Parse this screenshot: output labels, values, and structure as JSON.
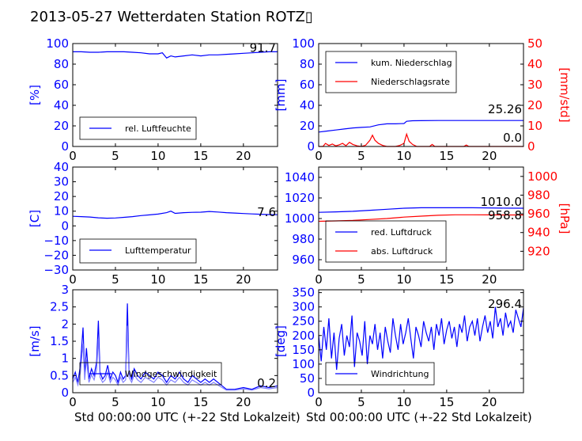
{
  "title": "2013-05-27 Wetterdaten Station ROTZ▯",
  "xlabel": "Std 00:00:00 UTC (+-22 Std Lokalzeit)",
  "colors": {
    "left_axis": "#0000ff",
    "right_axis": "#ff0000",
    "series_main": "#0000ff",
    "series_secondary": "#ff0000",
    "wind_light": "#8080ff"
  },
  "chart_data": [
    {
      "id": "humidity",
      "type": "line",
      "ylabel": "[%]",
      "xlim": [
        0,
        24
      ],
      "ylim": [
        0,
        100
      ],
      "xticks": [
        0,
        5,
        10,
        15,
        20
      ],
      "yticks": [
        0,
        20,
        40,
        60,
        80,
        100
      ],
      "legend": "bottom-left",
      "annotation": "91.7",
      "series": [
        {
          "name": "rel. Luftfeuchte",
          "color": "#0000ff",
          "x": [
            0,
            1,
            2,
            3,
            4,
            5,
            6,
            7,
            8,
            9,
            10,
            10.5,
            11,
            11.5,
            12,
            13,
            14,
            15,
            16,
            17,
            18,
            19,
            20,
            21,
            22,
            23,
            24
          ],
          "y": [
            92,
            92,
            91.5,
            91.5,
            92,
            92,
            92,
            91.5,
            91,
            90,
            90,
            91,
            86,
            88,
            87,
            88,
            89,
            88,
            89,
            89,
            89.5,
            90,
            90.5,
            91,
            91.5,
            92,
            92
          ]
        }
      ]
    },
    {
      "id": "precipitation",
      "type": "line",
      "ylabel": "[mm]",
      "ylabel_right": "[mm/std]",
      "xlim": [
        0,
        24
      ],
      "ylim": [
        0,
        100
      ],
      "ylim_right": [
        0,
        50
      ],
      "xticks": [
        0,
        5,
        10,
        15,
        20
      ],
      "yticks": [
        0,
        20,
        40,
        60,
        80,
        100
      ],
      "yticks_right": [
        0,
        10,
        20,
        30,
        40,
        50
      ],
      "legend": "top-left",
      "annotations": [
        "25.26",
        "0.0"
      ],
      "series": [
        {
          "name": "kum. Niederschlag",
          "color": "#0000ff",
          "axis": "left",
          "x": [
            0,
            1,
            2,
            3,
            4,
            5,
            6,
            7,
            8,
            9,
            10,
            10.3,
            11,
            12,
            14,
            16,
            18,
            20,
            22,
            24
          ],
          "y": [
            14,
            15,
            16,
            17,
            18,
            18.5,
            19,
            21,
            22,
            22,
            22.3,
            24.5,
            25,
            25.1,
            25.2,
            25.2,
            25.26,
            25.26,
            25.26,
            25.26
          ]
        },
        {
          "name": "Niederschlagsrate",
          "color": "#ff0000",
          "axis": "right",
          "x": [
            0,
            0.5,
            0.8,
            1.2,
            1.6,
            2.0,
            2.4,
            2.8,
            3.2,
            3.6,
            4.0,
            4.5,
            5.0,
            5.5,
            6.0,
            6.3,
            6.6,
            7.0,
            7.5,
            8.0,
            8.5,
            9.0,
            9.5,
            10.0,
            10.3,
            10.6,
            11.0,
            11.5,
            12.0,
            13.0,
            13.3,
            13.6,
            14.0,
            17.0,
            17.3,
            17.6,
            18.0,
            24.0
          ],
          "y": [
            0,
            0,
            1.5,
            0.5,
            1.2,
            0.3,
            0.8,
            1.5,
            0.4,
            2.0,
            1.0,
            0.3,
            0,
            0.6,
            3.0,
            5.5,
            3.0,
            1.5,
            0.5,
            0,
            0,
            0,
            0.5,
            1.5,
            6.0,
            2.5,
            1.0,
            0,
            0,
            0,
            1.0,
            0,
            0,
            0,
            0.7,
            0,
            0,
            0
          ]
        }
      ]
    },
    {
      "id": "temperature",
      "type": "line",
      "ylabel": "[C]",
      "xlim": [
        0,
        24
      ],
      "ylim": [
        -30,
        40
      ],
      "xticks": [
        0,
        5,
        10,
        15,
        20
      ],
      "yticks": [
        -30,
        -20,
        -10,
        0,
        10,
        20,
        30,
        40
      ],
      "legend": "bottom-left",
      "annotation": "7.6",
      "series": [
        {
          "name": "Lufttemperatur",
          "color": "#0000ff",
          "x": [
            0,
            1,
            2,
            3,
            4,
            5,
            6,
            7,
            8,
            9,
            10,
            11,
            11.5,
            12,
            13,
            14,
            15,
            16,
            17,
            18,
            19,
            20,
            21,
            22,
            23,
            24
          ],
          "y": [
            6.5,
            6.3,
            6.0,
            5.5,
            5.2,
            5.4,
            5.8,
            6.3,
            7.0,
            7.5,
            8.0,
            9.0,
            10.0,
            8.5,
            9.0,
            9.2,
            9.3,
            9.8,
            9.4,
            9.0,
            8.7,
            8.4,
            8.1,
            7.9,
            7.7,
            7.6
          ]
        }
      ]
    },
    {
      "id": "pressure",
      "type": "line",
      "ylabel_right": "[hPa]",
      "xlim": [
        0,
        24
      ],
      "ylim": [
        950,
        1050
      ],
      "ylim_right": [
        900,
        1010
      ],
      "xticks": [
        0,
        5,
        10,
        15,
        20
      ],
      "yticks": [
        960,
        980,
        1000,
        1020,
        1040
      ],
      "yticks_right": [
        920,
        940,
        960,
        980,
        1000
      ],
      "legend": "bottom-left",
      "annotations": [
        "1010.0",
        "958.8"
      ],
      "series": [
        {
          "name": "red. Luftdruck",
          "color": "#0000ff",
          "axis": "left",
          "x": [
            0,
            2,
            4,
            6,
            8,
            10,
            12,
            14,
            16,
            18,
            20,
            22,
            24
          ],
          "y": [
            1006,
            1006.5,
            1007,
            1008,
            1009,
            1010,
            1010.5,
            1010.5,
            1010.5,
            1010.5,
            1010.3,
            1010.1,
            1010.0
          ]
        },
        {
          "name": "abs. Luftdruck",
          "color": "#ff0000",
          "axis": "right",
          "x": [
            0,
            2,
            4,
            6,
            8,
            10,
            12,
            14,
            16,
            18,
            20,
            22,
            24
          ],
          "y": [
            952,
            952.5,
            953,
            954,
            955,
            956.5,
            957.5,
            958.5,
            959,
            959,
            958.9,
            958.8,
            958.8
          ]
        }
      ]
    },
    {
      "id": "wind_speed",
      "type": "line",
      "ylabel": "[m/s]",
      "xlim": [
        0,
        24
      ],
      "ylim": [
        0,
        3
      ],
      "xticks": [
        0,
        5,
        10,
        15,
        20
      ],
      "yticks": [
        0.0,
        0.5,
        1.0,
        1.5,
        2.0,
        2.5,
        3.0
      ],
      "legend": "bottom-left",
      "annotation": "0.2",
      "series": [
        {
          "name": "Windgeschwindigkeit",
          "color": "#0000ff",
          "x": [
            0,
            0.3,
            0.6,
            0.9,
            1.2,
            1.4,
            1.6,
            1.9,
            2.2,
            2.5,
            2.8,
            3.0,
            3.2,
            3.5,
            3.8,
            4.1,
            4.4,
            4.7,
            5.0,
            5.3,
            5.6,
            5.9,
            6.2,
            6.4,
            6.6,
            6.9,
            7.2,
            7.6,
            8.0,
            8.5,
            9.0,
            9.5,
            10.0,
            10.5,
            11.0,
            11.5,
            12.0,
            12.5,
            13.0,
            13.5,
            14.0,
            14.5,
            15.0,
            15.5,
            16.0,
            16.5,
            17.0,
            17.5,
            18.0,
            19.0,
            20.0,
            21.0,
            22.0,
            23.0,
            24.0
          ],
          "y": [
            0.4,
            0.6,
            0.3,
            0.8,
            1.9,
            0.5,
            1.3,
            0.4,
            0.7,
            0.5,
            0.9,
            2.1,
            0.6,
            0.4,
            0.5,
            0.8,
            0.4,
            0.6,
            0.5,
            0.3,
            0.6,
            0.4,
            0.5,
            2.6,
            0.6,
            0.4,
            0.7,
            0.5,
            0.4,
            0.6,
            0.5,
            0.4,
            0.6,
            0.5,
            0.3,
            0.5,
            0.4,
            0.6,
            0.4,
            0.3,
            0.5,
            0.4,
            0.3,
            0.4,
            0.3,
            0.4,
            0.3,
            0.2,
            0.1,
            0.1,
            0.15,
            0.1,
            0.2,
            0.15,
            0.2
          ]
        }
      ]
    },
    {
      "id": "wind_direction",
      "type": "line",
      "ylabel": "[deg]",
      "xlim": [
        0,
        24
      ],
      "ylim": [
        0,
        360
      ],
      "xticks": [
        0,
        5,
        10,
        15,
        20
      ],
      "yticks": [
        0,
        50,
        100,
        150,
        200,
        250,
        300,
        350
      ],
      "legend": "bottom-left",
      "annotation": "296.4",
      "series": [
        {
          "name": "Windrichtung",
          "color": "#0000ff",
          "x": [
            0,
            0.3,
            0.6,
            0.9,
            1.2,
            1.5,
            1.8,
            2.1,
            2.4,
            2.7,
            3.0,
            3.3,
            3.6,
            3.9,
            4.2,
            4.5,
            4.8,
            5.1,
            5.4,
            5.7,
            6.0,
            6.3,
            6.6,
            6.9,
            7.2,
            7.5,
            7.8,
            8.1,
            8.4,
            8.7,
            9.0,
            9.3,
            9.6,
            9.9,
            10.2,
            10.5,
            10.8,
            11.1,
            11.4,
            11.7,
            12.0,
            12.3,
            12.6,
            12.9,
            13.2,
            13.5,
            13.8,
            14.1,
            14.4,
            14.7,
            15.0,
            15.3,
            15.6,
            15.9,
            16.2,
            16.5,
            16.8,
            17.1,
            17.4,
            17.7,
            18.0,
            18.3,
            18.6,
            18.9,
            19.2,
            19.5,
            19.8,
            20.1,
            20.4,
            20.7,
            21.0,
            21.3,
            21.6,
            21.9,
            22.2,
            22.5,
            22.8,
            23.1,
            23.4,
            23.7,
            24.0
          ],
          "y": [
            200,
            110,
            230,
            150,
            260,
            120,
            210,
            80,
            190,
            240,
            130,
            200,
            160,
            270,
            90,
            210,
            180,
            130,
            250,
            100,
            200,
            170,
            240,
            150,
            210,
            120,
            230,
            180,
            140,
            260,
            200,
            150,
            240,
            170,
            210,
            260,
            190,
            120,
            230,
            200,
            160,
            250,
            210,
            180,
            230,
            150,
            240,
            200,
            260,
            170,
            220,
            250,
            190,
            230,
            160,
            240,
            210,
            270,
            180,
            230,
            250,
            200,
            260,
            180,
            230,
            270,
            210,
            250,
            190,
            300,
            230,
            260,
            200,
            280,
            230,
            250,
            210,
            290,
            260,
            230,
            296.4
          ]
        }
      ]
    }
  ]
}
